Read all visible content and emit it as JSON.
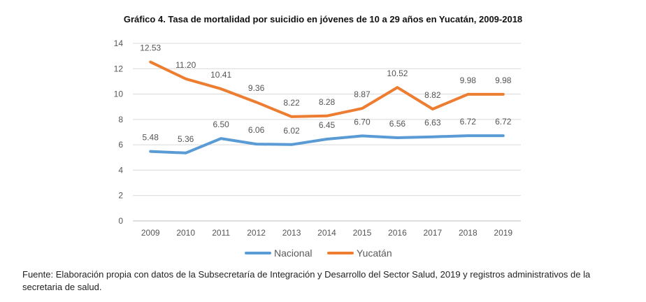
{
  "chart_data": {
    "type": "line",
    "title": "Gráfico 4. Tasa de mortalidad por suicidio en jóvenes de 10 a 29 años en Yucatán, 2009-2018",
    "xlabel": "",
    "ylabel": "",
    "categories": [
      "2009",
      "2010",
      "2011",
      "2012",
      "2013",
      "2014",
      "2015",
      "2016",
      "2017",
      "2018",
      "2019"
    ],
    "ylim": [
      0,
      14
    ],
    "yticks": [
      0,
      2,
      4,
      6,
      8,
      10,
      12,
      14
    ],
    "grid": true,
    "legend_position": "bottom",
    "series": [
      {
        "name": "Nacional",
        "color": "#5b9bd5",
        "values": [
          5.48,
          5.36,
          6.5,
          6.06,
          6.02,
          6.45,
          6.7,
          6.56,
          6.63,
          6.72,
          6.72
        ],
        "labels": [
          "5.48",
          "5.36",
          "6.50",
          "6.06",
          "6.02",
          "6.45",
          "6.70",
          "6.56",
          "6.63",
          "6.72",
          "6.72"
        ]
      },
      {
        "name": "Yucatán",
        "color": "#ed7d31",
        "values": [
          12.53,
          11.2,
          10.41,
          9.36,
          8.22,
          8.28,
          8.87,
          10.52,
          8.82,
          9.98,
          9.98
        ],
        "labels": [
          "12.53",
          "11.20",
          "10.41",
          "9.36",
          "8.22",
          "8.28",
          "8.87",
          "10.52",
          "8.82",
          "9.98",
          "9.98"
        ]
      }
    ]
  },
  "source_note": "Fuente: Elaboración propia con datos de la Subsecretaría de Integración y Desarrollo del Sector Salud, 2019 y registros administrativos de la secretaria de salud."
}
